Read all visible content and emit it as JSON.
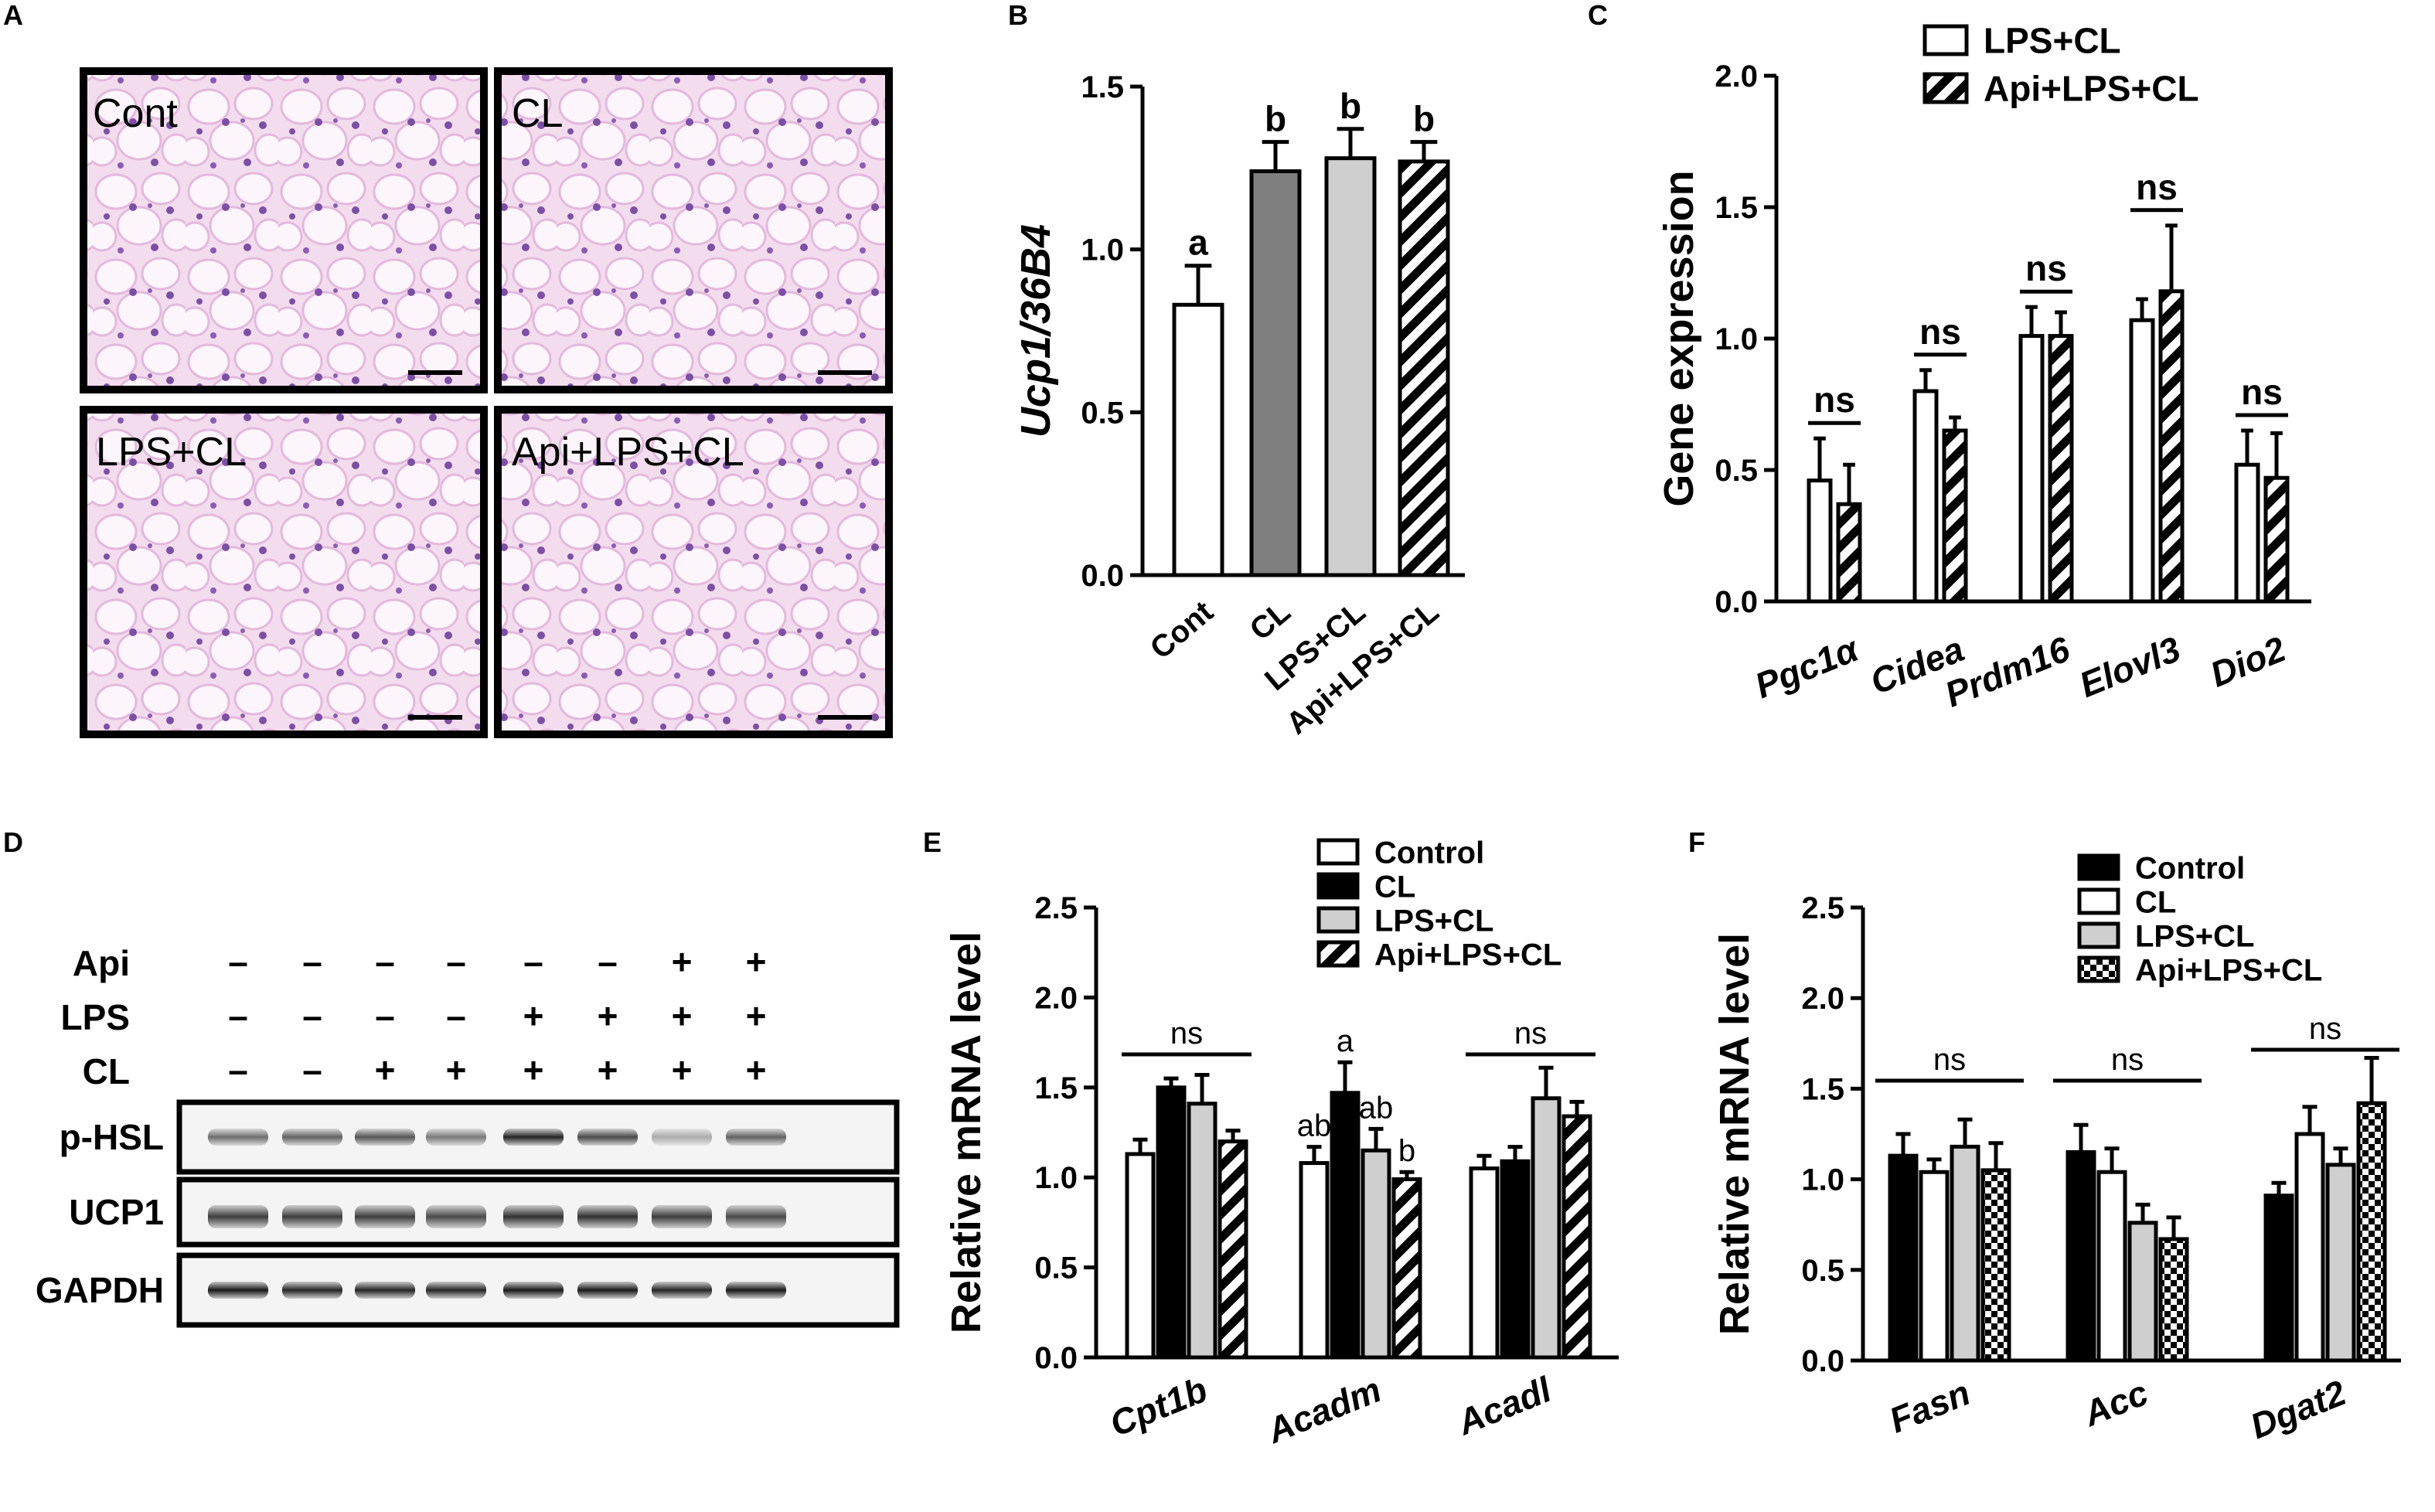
{
  "panel_letters": {
    "A": "A",
    "B": "B",
    "C": "C",
    "D": "D",
    "E": "E",
    "F": "F"
  },
  "colors": {
    "he_background": "#f0d6ec",
    "he_cells": "#fbf4fb",
    "he_nuclei": "#7b4fa6",
    "grey_bar": "#7f7f7f",
    "light_bar": "#cfcfcf",
    "black": "#000000"
  },
  "panel_a": {
    "images": [
      {
        "label": "Cont"
      },
      {
        "label": "CL"
      },
      {
        "label": "LPS+CL"
      },
      {
        "label": "Api+LPS+CL"
      }
    ]
  },
  "panel_d": {
    "treatments": [
      {
        "name": "Api",
        "values": [
          "–",
          "–",
          "–",
          "–",
          "–",
          "–",
          "+",
          "+"
        ]
      },
      {
        "name": "LPS",
        "values": [
          "–",
          "–",
          "–",
          "–",
          "+",
          "+",
          "+",
          "+"
        ]
      },
      {
        "name": "CL",
        "values": [
          "–",
          "–",
          "+",
          "+",
          "+",
          "+",
          "+",
          "+"
        ]
      }
    ],
    "blots": [
      {
        "name": "p-HSL",
        "band_intensity": [
          0.55,
          0.6,
          0.65,
          0.5,
          0.85,
          0.7,
          0.3,
          0.6
        ]
      },
      {
        "name": "UCP1",
        "band_intensity": [
          0.75,
          0.75,
          0.75,
          0.7,
          0.8,
          0.8,
          0.75,
          0.7
        ]
      },
      {
        "name": "GAPDH",
        "band_intensity": [
          0.9,
          0.85,
          0.85,
          0.85,
          0.9,
          0.9,
          0.85,
          0.9
        ]
      }
    ]
  },
  "chart_data": [
    {
      "id": "B",
      "type": "bar",
      "ylabel": "Ucp1/36B4",
      "ylim": [
        0,
        1.5
      ],
      "yticks": [
        "0.0",
        "0.5",
        "1.0",
        "1.5"
      ],
      "categories": [
        "Cont",
        "CL",
        "LPS+CL",
        "Api+LPS+CL"
      ],
      "values": [
        0.83,
        1.24,
        1.28,
        1.27
      ],
      "errors": [
        0.12,
        0.09,
        0.09,
        0.06
      ],
      "fills": [
        "white",
        "grey",
        "light",
        "hatch"
      ],
      "sig": [
        "a",
        "b",
        "b",
        "b"
      ],
      "grid": false
    },
    {
      "id": "C",
      "type": "bar",
      "ylabel": "Gene expression",
      "ylim": [
        0,
        2.0
      ],
      "yticks": [
        "0.0",
        "0.5",
        "1.0",
        "1.5",
        "2.0"
      ],
      "categories": [
        "Pgc1α",
        "Cidea",
        "Prdm16",
        "Elovl3",
        "Dio2"
      ],
      "series": [
        {
          "name": "LPS+CL",
          "fill": "white",
          "values": [
            0.46,
            0.8,
            1.01,
            1.07,
            0.52
          ],
          "errors": [
            0.16,
            0.08,
            0.11,
            0.08,
            0.13
          ]
        },
        {
          "name": "Api+LPS+CL",
          "fill": "hatch",
          "values": [
            0.37,
            0.65,
            1.01,
            1.18,
            0.47
          ],
          "errors": [
            0.15,
            0.05,
            0.09,
            0.25,
            0.17
          ]
        }
      ],
      "sig": [
        "ns",
        "ns",
        "ns",
        "ns",
        "ns"
      ],
      "legend": "top-right",
      "grid": false
    },
    {
      "id": "E",
      "type": "bar",
      "ylabel": "Relative mRNA level",
      "ylim": [
        0,
        2.5
      ],
      "yticks": [
        "0.0",
        "0.5",
        "1.0",
        "1.5",
        "2.0",
        "2.5"
      ],
      "categories": [
        "Cpt1b",
        "Acadm",
        "Acadl"
      ],
      "series": [
        {
          "name": "Control",
          "fill": "white",
          "values": [
            1.13,
            1.08,
            1.05
          ],
          "errors": [
            0.08,
            0.09,
            0.07
          ]
        },
        {
          "name": "CL",
          "fill": "black",
          "values": [
            1.5,
            1.47,
            1.09
          ],
          "errors": [
            0.05,
            0.17,
            0.08
          ]
        },
        {
          "name": "LPS+CL",
          "fill": "light",
          "values": [
            1.41,
            1.15,
            1.44
          ],
          "errors": [
            0.16,
            0.12,
            0.17
          ]
        },
        {
          "name": "Api+LPS+CL",
          "fill": "hatch",
          "values": [
            1.2,
            0.99,
            1.34
          ],
          "errors": [
            0.06,
            0.04,
            0.08
          ]
        }
      ],
      "sig_groups": [
        "ns",
        null,
        "ns"
      ],
      "sig_bars": [
        [
          null,
          null,
          null,
          null
        ],
        [
          "ab",
          "a",
          "ab",
          "b"
        ],
        [
          null,
          null,
          null,
          null
        ]
      ],
      "legend": "top-right",
      "grid": false
    },
    {
      "id": "F",
      "type": "bar",
      "ylabel": "Relative mRNA level",
      "ylim": [
        0,
        2.5
      ],
      "yticks": [
        "0.0",
        "0.5",
        "1.0",
        "1.5",
        "2.0",
        "2.5"
      ],
      "categories": [
        "Fasn",
        "Acc",
        "Dgat2"
      ],
      "series": [
        {
          "name": "Control",
          "fill": "black",
          "values": [
            1.13,
            1.15,
            0.91
          ],
          "errors": [
            0.12,
            0.15,
            0.07
          ]
        },
        {
          "name": "CL",
          "fill": "white",
          "values": [
            1.04,
            1.04,
            1.25
          ],
          "errors": [
            0.07,
            0.13,
            0.15
          ]
        },
        {
          "name": "LPS+CL",
          "fill": "light",
          "values": [
            1.18,
            0.76,
            1.08
          ],
          "errors": [
            0.15,
            0.1,
            0.09
          ]
        },
        {
          "name": "Api+LPS+CL",
          "fill": "checker",
          "values": [
            1.05,
            0.67,
            1.42
          ],
          "errors": [
            0.15,
            0.12,
            0.25
          ]
        }
      ],
      "sig_groups": [
        "ns",
        "ns",
        "ns"
      ],
      "legend": "top-right",
      "grid": false
    }
  ]
}
